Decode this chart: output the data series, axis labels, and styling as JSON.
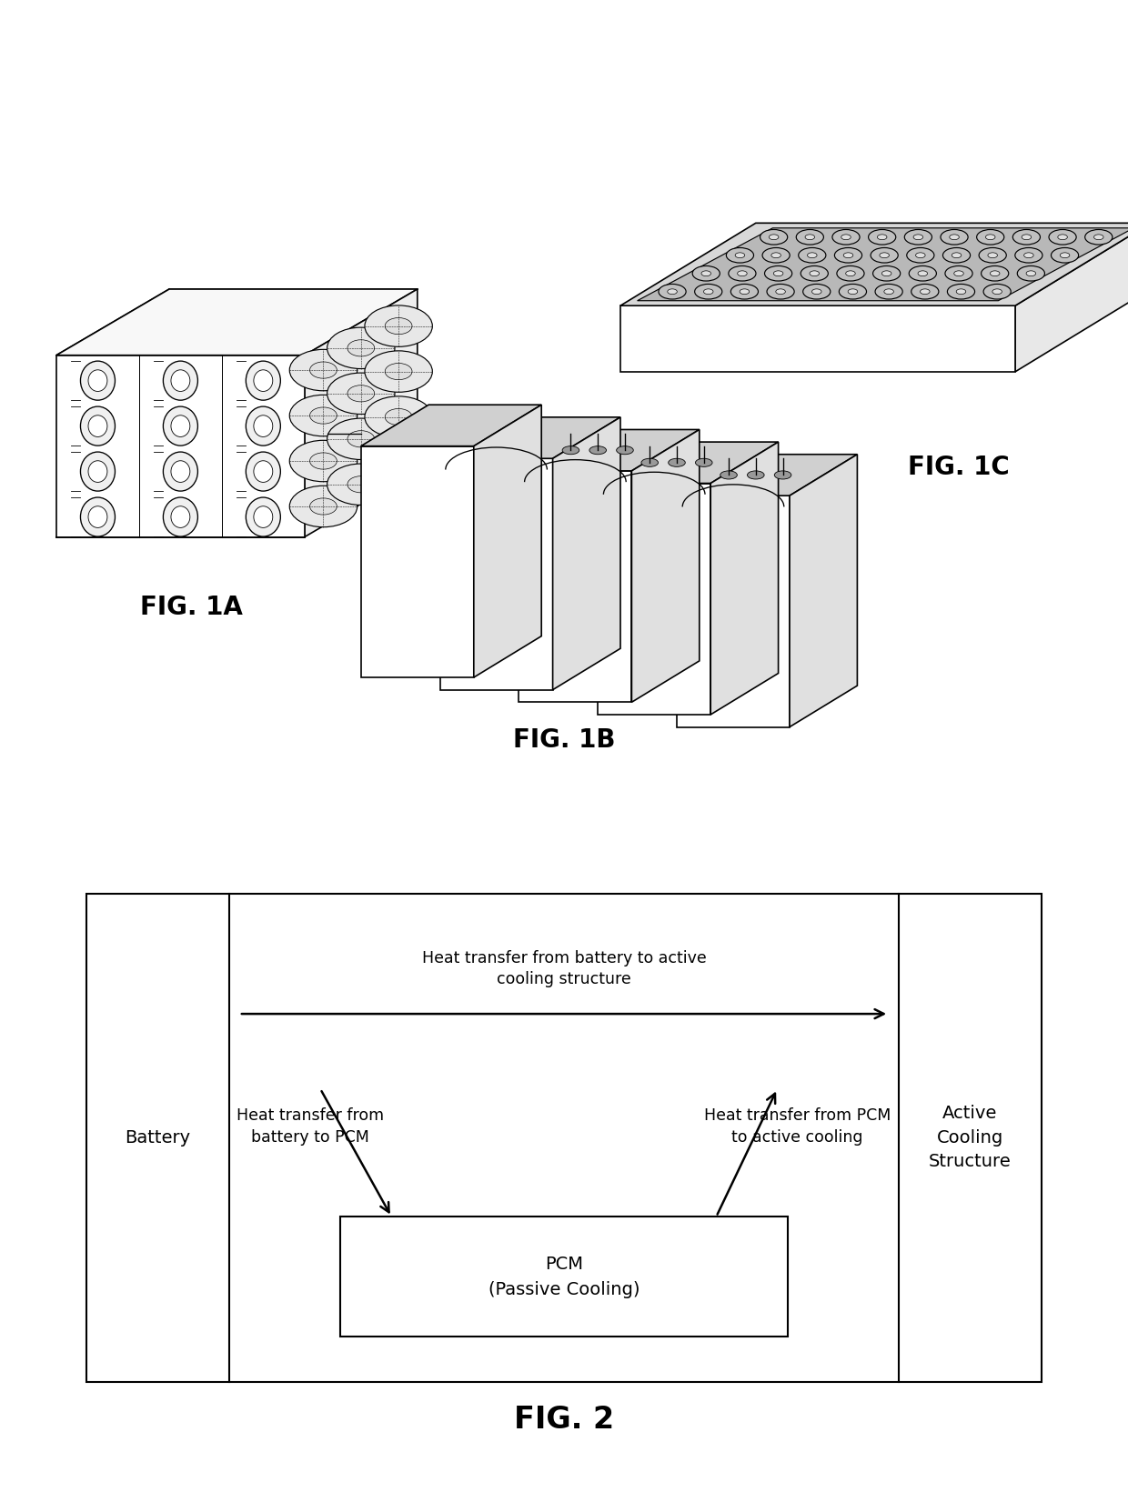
{
  "fig_size": [
    12.4,
    16.52
  ],
  "dpi": 100,
  "bg_color": "#ffffff",
  "fig1a_label": "FIG. 1A",
  "fig1b_label": "FIG. 1B",
  "fig1c_label": "FIG. 1C",
  "fig2_label": "FIG. 2",
  "battery_label": "Battery",
  "active_cooling_label": "Active\nCooling\nStructure",
  "pcm_label": "PCM\n(Passive Cooling)",
  "arrow1_text": "Heat transfer from battery to active\ncooling structure",
  "arrow2_text": "Heat transfer from\nbattery to PCM",
  "arrow3_text": "Heat transfer from PCM\nto active cooling"
}
